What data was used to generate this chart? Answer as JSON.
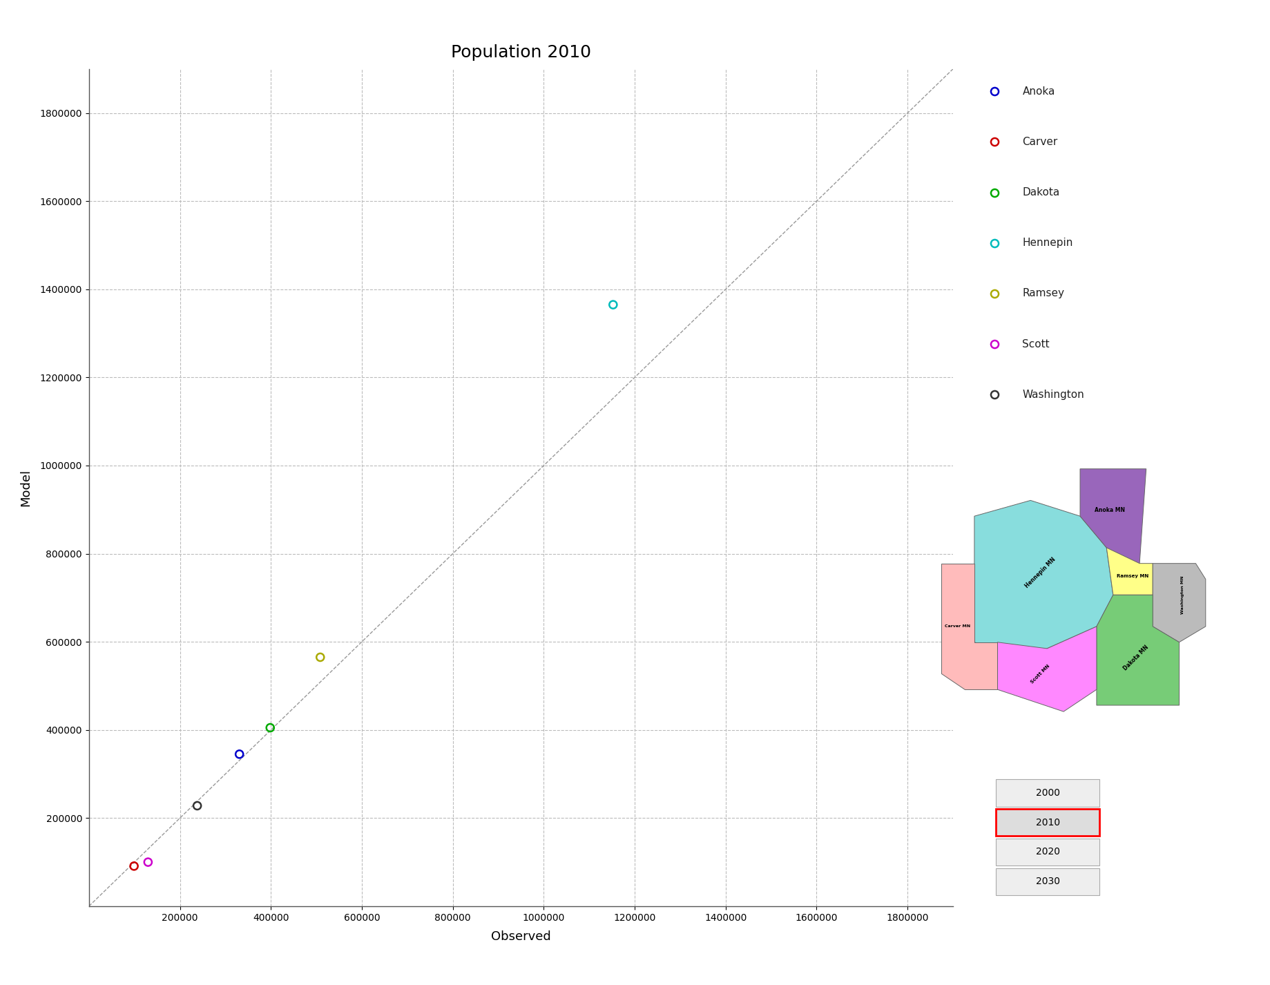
{
  "title": "Population 2010",
  "xlabel": "Observed",
  "ylabel": "Model",
  "xlim": [
    0,
    1900000
  ],
  "ylim": [
    0,
    1900000
  ],
  "xticks": [
    200000,
    400000,
    600000,
    800000,
    1000000,
    1200000,
    1400000,
    1600000,
    1800000
  ],
  "yticks": [
    200000,
    400000,
    600000,
    800000,
    1000000,
    1200000,
    1400000,
    1600000,
    1800000
  ],
  "counties": [
    {
      "name": "Anoka",
      "observed": 330844,
      "model": 345000,
      "color": "#0000CC"
    },
    {
      "name": "Carver",
      "observed": 99145,
      "model": 91000,
      "color": "#CC0000"
    },
    {
      "name": "Dakota",
      "observed": 398552,
      "model": 405000,
      "color": "#00AA00"
    },
    {
      "name": "Hennepin",
      "observed": 1152583,
      "model": 1365000,
      "color": "#00BBBB"
    },
    {
      "name": "Ramsey",
      "observed": 508640,
      "model": 565000,
      "color": "#AAAA00"
    },
    {
      "name": "Scott",
      "observed": 129928,
      "model": 100000,
      "color": "#CC00CC"
    },
    {
      "name": "Washington",
      "observed": 238136,
      "model": 228000,
      "color": "#333333"
    }
  ],
  "marker_size": 8,
  "diagonal_color": "#999999",
  "grid_color": "#BBBBBB",
  "background_color": "#FFFFFF",
  "county_map_colors": {
    "Anoka": "#9966BB",
    "Carver": "#FFBBBB",
    "Dakota": "#77CC77",
    "Hennepin": "#88DDDD",
    "Ramsey": "#FFFF88",
    "Scott": "#FF88FF",
    "Washington": "#BBBBBB"
  },
  "year_boxes": [
    {
      "label": "2000",
      "selected": false
    },
    {
      "label": "2010",
      "selected": true
    },
    {
      "label": "2020",
      "selected": false
    },
    {
      "label": "2030",
      "selected": false
    }
  ]
}
